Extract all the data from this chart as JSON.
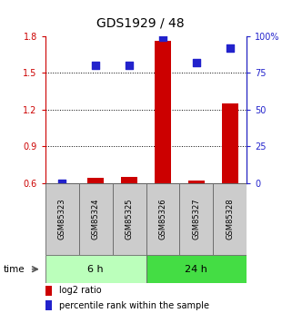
{
  "title": "GDS1929 / 48",
  "samples": [
    "GSM85323",
    "GSM85324",
    "GSM85325",
    "GSM85326",
    "GSM85327",
    "GSM85328"
  ],
  "log2_ratio": [
    0.6,
    0.64,
    0.65,
    1.76,
    0.62,
    1.25
  ],
  "percentile_rank": [
    0.0,
    80.0,
    80.0,
    99.0,
    82.0,
    92.0
  ],
  "groups": [
    {
      "label": "6 h",
      "indices": [
        0,
        1,
        2
      ],
      "color": "#bbffbb"
    },
    {
      "label": "24 h",
      "indices": [
        3,
        4,
        5
      ],
      "color": "#44dd44"
    }
  ],
  "ylim_left": [
    0.6,
    1.8
  ],
  "ylim_right": [
    0,
    100
  ],
  "yticks_left": [
    0.6,
    0.9,
    1.2,
    1.5,
    1.8
  ],
  "yticks_right": [
    0,
    25,
    50,
    75,
    100
  ],
  "ytick_labels_right": [
    "0",
    "25",
    "50",
    "75",
    "100%"
  ],
  "hlines": [
    0.9,
    1.2,
    1.5
  ],
  "bar_color": "#cc0000",
  "dot_color": "#2222cc",
  "bar_width": 0.5,
  "dot_size": 28,
  "left_tick_color": "#cc0000",
  "right_tick_color": "#2222cc",
  "sample_box_color": "#cccccc",
  "group_border_color": "#666666",
  "legend_bar_label": "log2 ratio",
  "legend_dot_label": "percentile rank within the sample",
  "time_label": "time",
  "bg_color": "#ffffff",
  "title_fontsize": 10,
  "tick_fontsize": 7,
  "sample_fontsize": 6,
  "group_fontsize": 8,
  "legend_fontsize": 7
}
